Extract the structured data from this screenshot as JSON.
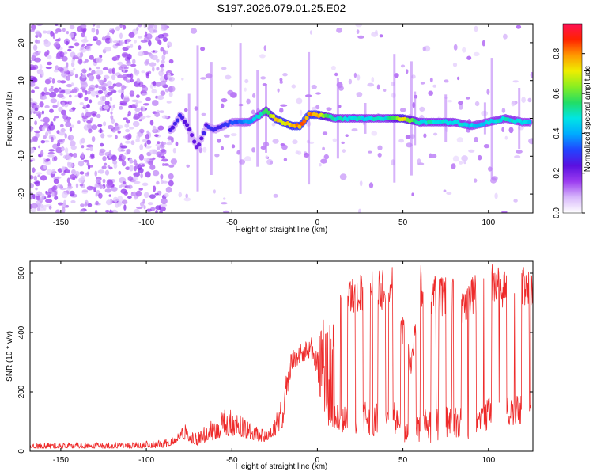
{
  "colors": {
    "snr_line": "#ee2a2a",
    "axis": "#000000",
    "colormap": [
      "#ffffff",
      "#d7b7fb",
      "#9b3cf0",
      "#5a10e0",
      "#2244ff",
      "#00aaff",
      "#00e5e5",
      "#22dd66",
      "#88ee22",
      "#eeee00",
      "#ff9900",
      "#ff2200",
      "#ff1155"
    ]
  },
  "chart_data": [
    {
      "type": "heatmap",
      "title": "S197.2026.079.01.25.E02",
      "xlabel": "Height of straight line (km)",
      "ylabel": "Frequency (Hz)",
      "xlim": [
        -168,
        126
      ],
      "ylim": [
        -25,
        25
      ],
      "x_ticks": [
        -150,
        -100,
        -50,
        0,
        50,
        100
      ],
      "y_ticks": [
        -20,
        -10,
        0,
        10,
        20
      ],
      "colorbar": {
        "label": "Normalized spectral amplitude",
        "range": [
          0,
          0.95
        ],
        "ticks": [
          0.0,
          0.2,
          0.4,
          0.6,
          0.8
        ]
      },
      "ridge": {
        "description": "spectral peak track near 0 Hz",
        "x": [
          -85,
          -80,
          -75,
          -70,
          -65,
          -60,
          -50,
          -40,
          -30,
          -25,
          -20,
          -15,
          -10,
          -5,
          0,
          10,
          20,
          30,
          40,
          50,
          60,
          70,
          80,
          90,
          100,
          110,
          120,
          125
        ],
        "freq": [
          -3,
          1,
          -3,
          -8,
          -2,
          -3,
          -1,
          -1,
          2,
          0,
          -1,
          -2,
          -2,
          1,
          1,
          0,
          0,
          0,
          0,
          0,
          -1,
          -1,
          -1,
          -2,
          -1,
          0,
          -1,
          -1
        ],
        "peak_amplitude": [
          0.3,
          0.3,
          0.25,
          0.25,
          0.3,
          0.3,
          0.35,
          0.45,
          0.6,
          0.85,
          0.85,
          0.85,
          0.9,
          0.9,
          0.85,
          0.55,
          0.55,
          0.55,
          0.55,
          0.8,
          0.55,
          0.55,
          0.55,
          0.5,
          0.5,
          0.55,
          0.5,
          0.5
        ]
      }
    },
    {
      "type": "line",
      "title": "",
      "xlabel": "Height of straight line (km)",
      "ylabel": "SNR (10 * v/v)",
      "xlim": [
        -168,
        126
      ],
      "ylim": [
        0,
        640
      ],
      "x_ticks": [
        -150,
        -100,
        -50,
        0,
        50,
        100
      ],
      "y_ticks": [
        0,
        200,
        400,
        600
      ],
      "series": [
        {
          "name": "SNR",
          "description": "envelope anchors of a noisy trace",
          "x": [
            -168,
            -140,
            -110,
            -90,
            -85,
            -80,
            -77,
            -75,
            -70,
            -65,
            -60,
            -55,
            -50,
            -45,
            -40,
            -35,
            -30,
            -25,
            -20,
            -18,
            -15,
            -10,
            -5,
            -2,
            0,
            3,
            6,
            10,
            15,
            20,
            25,
            30,
            35,
            40,
            45,
            47,
            50,
            55,
            60,
            65,
            70,
            75,
            80,
            85,
            90,
            95,
            100,
            105,
            110,
            115,
            120,
            125
          ],
          "low": [
            10,
            10,
            10,
            12,
            20,
            40,
            40,
            30,
            20,
            30,
            40,
            50,
            50,
            50,
            40,
            35,
            30,
            50,
            80,
            180,
            270,
            300,
            310,
            290,
            250,
            120,
            60,
            80,
            60,
            60,
            60,
            50,
            50,
            50,
            50,
            80,
            30,
            20,
            20,
            30,
            30,
            40,
            50,
            40,
            30,
            50,
            70,
            80,
            80,
            90,
            90,
            90
          ],
          "high": [
            30,
            30,
            30,
            40,
            50,
            80,
            100,
            70,
            60,
            90,
            110,
            150,
            140,
            120,
            100,
            80,
            70,
            120,
            200,
            270,
            340,
            380,
            390,
            390,
            390,
            450,
            450,
            480,
            560,
            580,
            600,
            640,
            620,
            620,
            640,
            400,
            470,
            330,
            640,
            600,
            600,
            590,
            580,
            560,
            600,
            600,
            640,
            620,
            620,
            620,
            620,
            620
          ]
        }
      ]
    }
  ]
}
